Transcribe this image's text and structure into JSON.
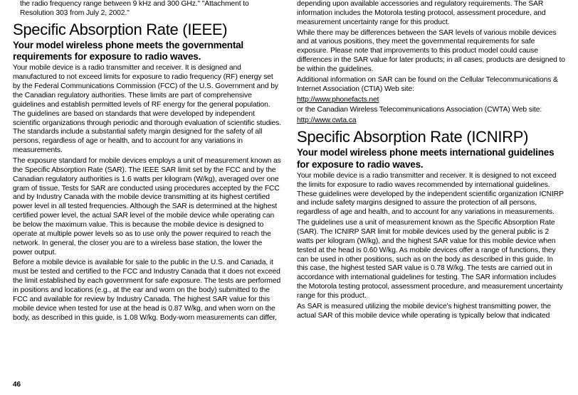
{
  "left": {
    "hanging": "the radio frequency range between 9 kHz and 300 GHz.\" \"Attachment to Resolution 303 from July 2, 2002.\"",
    "h1": "Specific Absorption Rate (IEEE)",
    "h2": "Your model wireless phone meets the governmental requirements for exposure to radio waves.",
    "p1": "Your mobile device is a radio transmitter and receiver. It is designed and manufactured to not exceed limits for exposure to radio frequency (RF) energy set by the Federal Communications Commission (FCC) of the U.S. Government and by the Canadian regulatory authorities. These limits are part of comprehensive guidelines and establish permitted levels of RF energy for the general population. The guidelines are based on standards that were developed by independent scientific organizations through periodic and thorough evaluation of scientific studies. The standards include a substantial safety margin designed for the safety of all persons, regardless of age or health, and to account for any variations in measurements.",
    "p2": "The exposure standard for mobile devices employs a unit of measurement known as the Specific Absorption Rate (SAR). The IEEE SAR limit set by the FCC and by the Canadian regulatory authorities is 1.6 watts per kilogram (W/kg), averaged over one gram of tissue. Tests for SAR are conducted using procedures accepted by the FCC and by Industry Canada with the mobile device transmitting at its highest certified power level in all tested frequencies. Although the SAR is determined at the highest certified power level, the actual SAR level of the mobile device while operating can be below the maximum value. This is because the mobile device is designed to operate at multiple power levels so as to use only the power required to reach the network. In general, the closer you are to a wireless base station, the lower the power output.",
    "p3": "Before a mobile device is available for sale to the public in the U.S. and Canada, it must be tested and certified to the FCC and Industry Canada that it does not exceed the limit established by each government for safe exposure. The tests are performed in positions and locations (e.g., at the ear and worn on the body) submitted to the FCC and available for review by Industry Canada. The highest SAR value for this mobile device when tested for use at the head is 0.87 W/kg, and when worn on the body, as described in this guide, is 1.08 W/kg. Body-worn measurements can differ,"
  },
  "right": {
    "p1": "depending upon available accessories and regulatory requirements. The SAR information includes the Motorola testing protocol, assessment procedure, and measurement uncertainty range for this product.",
    "p2": "While there may be differences between the SAR levels of various mobile devices and at various positions, they meet the governmental requirements for safe exposure. Please note that improvements to this product model could cause differences in the SAR value for later products; in all cases, products are designed to be within the guidelines.",
    "p3": "Additional information on SAR can be found on the Cellular Telecommunications & Internet Association (CTIA) Web site:",
    "link1": "http://www.phonefacts.net",
    "p4": "or the Canadian Wireless Telecommunications Association (CWTA) Web site:",
    "link2": "http://www.cwta.ca",
    "h1": "Specific Absorption Rate (ICNIRP)",
    "h2": "Your model wireless phone meets international guidelines for exposure to radio waves.",
    "p5": "Your mobile device is a radio transmitter and receiver. It is designed to not exceed the limits for exposure to radio waves recommended by international guidelines. These guidelines were developed by the independent scientific organization ICNIRP and include safety margins designed to assure the protection of all persons, regardless of age and health, and to account for any variations in measurements.",
    "p6": "The guidelines use a unit of measurement known as the Specific Absorption Rate (SAR). The ICNIRP SAR limit for mobile devices used by the general public is 2 watts per kilogram (W/kg), and the highest SAR value for this mobile device when tested at the head is 0.60 W/kg. As mobile devices offer a range of functions, they can be used in other positions, such as on the body as described in this guide. In this case, the highest tested SAR value is 0.78 W/kg. The tests are carried out in accordance with international guidelines for testing. The SAR information includes the Motorola testing protocol, assessment procedure, and measurement uncertainty range for this product.",
    "p7": "As SAR is measured utilizing the mobile device's highest transmitting power, the actual SAR of this mobile device while operating is typically below that indicated"
  },
  "pagenum": "46"
}
